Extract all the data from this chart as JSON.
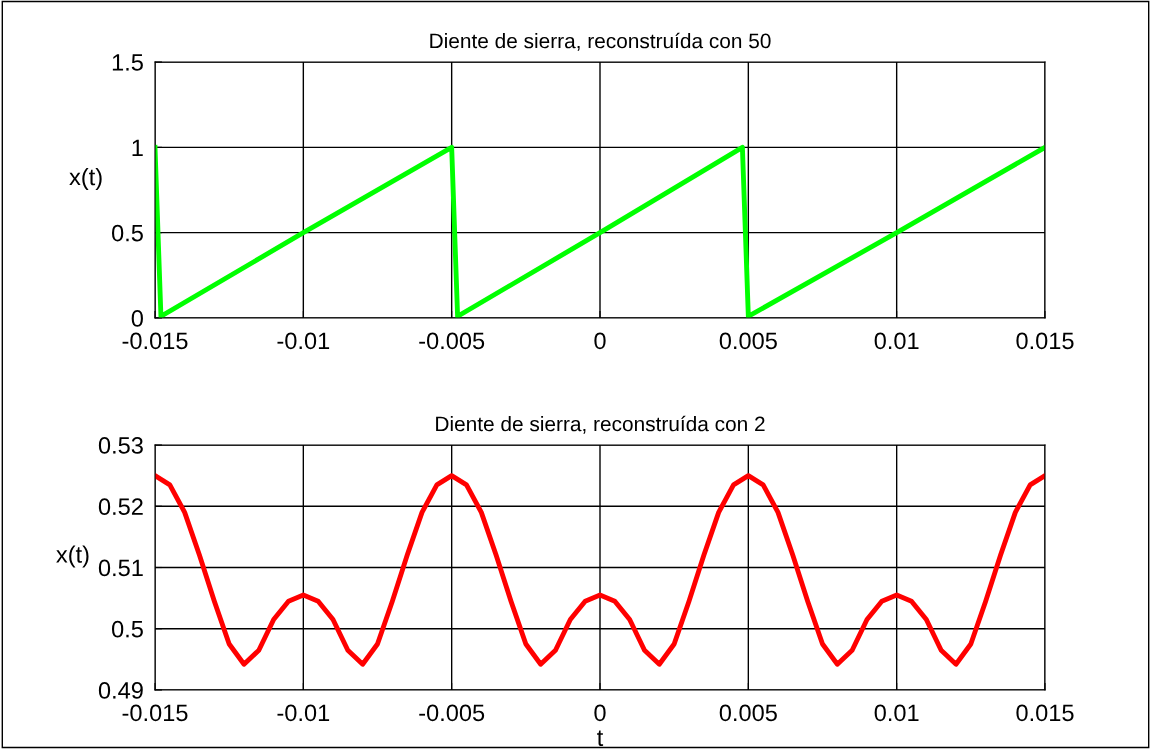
{
  "chart_data": [
    {
      "type": "line",
      "title": "Diente de sierra, reconstruída con 50",
      "ylabel": "x(t)",
      "xlim": [
        -0.015,
        0.015
      ],
      "xticks": [
        -0.015,
        -0.01,
        -0.005,
        0,
        0.005,
        0.01,
        0.015
      ],
      "ylim": [
        0,
        1.5
      ],
      "yticks": [
        0,
        0.5,
        1,
        1.5
      ],
      "grid": true,
      "series": [
        {
          "color": "#00ff00",
          "x": [
            -0.015,
            -0.0148,
            -0.01,
            -0.005,
            -0.0048,
            0,
            0.0048,
            0.005,
            0.01,
            0.015
          ],
          "values": [
            1,
            0.01,
            0.5,
            1,
            0.01,
            0.5,
            1,
            0.01,
            0.5,
            1
          ]
        }
      ]
    },
    {
      "type": "line",
      "title": "Diente de sierra, reconstruída con 2",
      "ylabel": "x(t)",
      "xlabel": "t",
      "xlim": [
        -0.015,
        0.015
      ],
      "xticks": [
        -0.015,
        -0.01,
        -0.005,
        0,
        0.005,
        0.01,
        0.015
      ],
      "ylim": [
        0.49,
        0.53
      ],
      "yticks": [
        0.49,
        0.5,
        0.51,
        0.52,
        0.53
      ],
      "grid": true,
      "series": [
        {
          "color": "#ff0000",
          "x": [
            -0.015,
            -0.0145,
            -0.014,
            -0.0135,
            -0.013,
            -0.0125,
            -0.012,
            -0.0115,
            -0.011,
            -0.0105,
            -0.01,
            -0.0095,
            -0.009,
            -0.0085,
            -0.008,
            -0.0075,
            -0.007,
            -0.0065,
            -0.006,
            -0.0055,
            -0.005,
            -0.0045,
            -0.004,
            -0.0035,
            -0.003,
            -0.0025,
            -0.002,
            -0.0015,
            -0.001,
            -0.0005,
            0,
            0.0005,
            0.001,
            0.0015,
            0.002,
            0.0025,
            0.003,
            0.0035,
            0.004,
            0.0045,
            0.005,
            0.0055,
            0.006,
            0.0065,
            0.007,
            0.0075,
            0.008,
            0.0085,
            0.009,
            0.0095,
            0.01,
            0.0105,
            0.011,
            0.0115,
            0.012,
            0.0125,
            0.013,
            0.0135,
            0.014,
            0.0145,
            0.015
          ],
          "values": [
            0.525,
            0.5235,
            0.519,
            0.512,
            0.5045,
            0.4975,
            0.4942,
            0.4965,
            0.5015,
            0.5045,
            0.5055,
            0.5045,
            0.5015,
            0.4965,
            0.4942,
            0.4975,
            0.5045,
            0.512,
            0.519,
            0.5235,
            0.525,
            0.5235,
            0.519,
            0.512,
            0.5045,
            0.4975,
            0.4942,
            0.4965,
            0.5015,
            0.5045,
            0.5055,
            0.5045,
            0.5015,
            0.4965,
            0.4942,
            0.4975,
            0.5045,
            0.512,
            0.519,
            0.5235,
            0.525,
            0.5235,
            0.519,
            0.512,
            0.5045,
            0.4975,
            0.4942,
            0.4965,
            0.5015,
            0.5045,
            0.5055,
            0.5045,
            0.5015,
            0.4965,
            0.4942,
            0.4975,
            0.5045,
            0.512,
            0.519,
            0.5235,
            0.525
          ]
        }
      ]
    }
  ]
}
